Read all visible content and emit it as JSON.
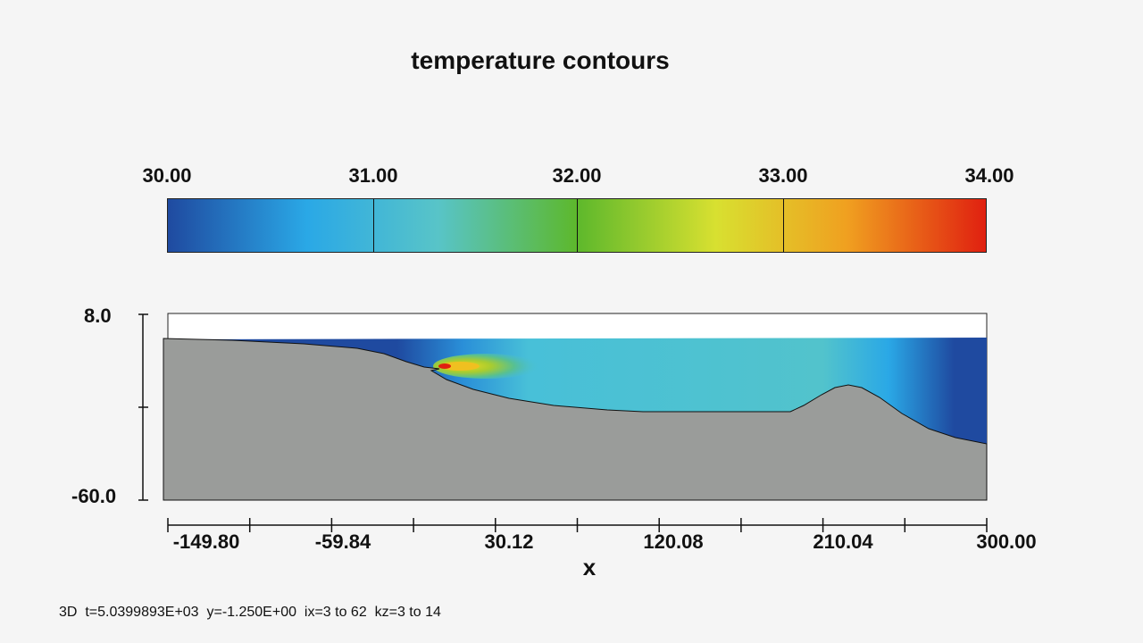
{
  "title": "temperature contours",
  "colorbar": {
    "labels": [
      "30.00",
      "31.00",
      "32.00",
      "33.00",
      "34.00"
    ],
    "min": 30.0,
    "max": 34.0,
    "colors": [
      "#1f4aa0",
      "#2aa8e6",
      "#58c4c8",
      "#5db82c",
      "#d8e030",
      "#f0a020",
      "#e02010"
    ]
  },
  "chart_data": {
    "type": "heatmap",
    "title": "temperature contours",
    "xlabel": "x",
    "ylabel": "",
    "x_ticks": [
      "-149.80",
      "-59.84",
      "30.12",
      "120.08",
      "210.04",
      "300.00"
    ],
    "y_ticks": [
      "8.0",
      "-60.0"
    ],
    "xlim": [
      -149.8,
      300.0
    ],
    "ylim": [
      -60.0,
      8.0
    ],
    "value_range": [
      30.0,
      34.0
    ],
    "colorbar_ticks": [
      30.0,
      31.0,
      32.0,
      33.0,
      34.0
    ],
    "terrain_color": "#9a9c9a",
    "background_water": "#1f4aa0",
    "plume_hotspot_color": "#e02010"
  },
  "footer": "3D  t=5.0399893E+03  y=-1.250E+00  ix=3 to 62  kz=3 to 14"
}
